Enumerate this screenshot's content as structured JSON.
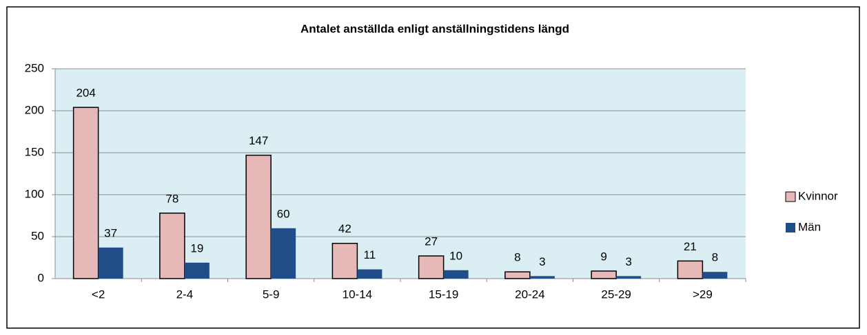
{
  "chart_data": {
    "type": "bar",
    "title": "Antalet anställda enligt anställningstidens längd",
    "categories": [
      "<2",
      "2-4",
      "5-9",
      "10-14",
      "15-19",
      "20-24",
      "25-29",
      ">29"
    ],
    "series": [
      {
        "name": "Kvinnor",
        "color": "#e6b9b8",
        "values": [
          204,
          78,
          147,
          42,
          27,
          8,
          9,
          21
        ]
      },
      {
        "name": "Män",
        "color": "#1f4e89",
        "values": [
          37,
          19,
          60,
          11,
          10,
          3,
          3,
          8
        ]
      }
    ],
    "ylim": [
      0,
      250
    ],
    "yticks": [
      0,
      50,
      100,
      150,
      200,
      250
    ],
    "grid": true,
    "legend": "right"
  }
}
